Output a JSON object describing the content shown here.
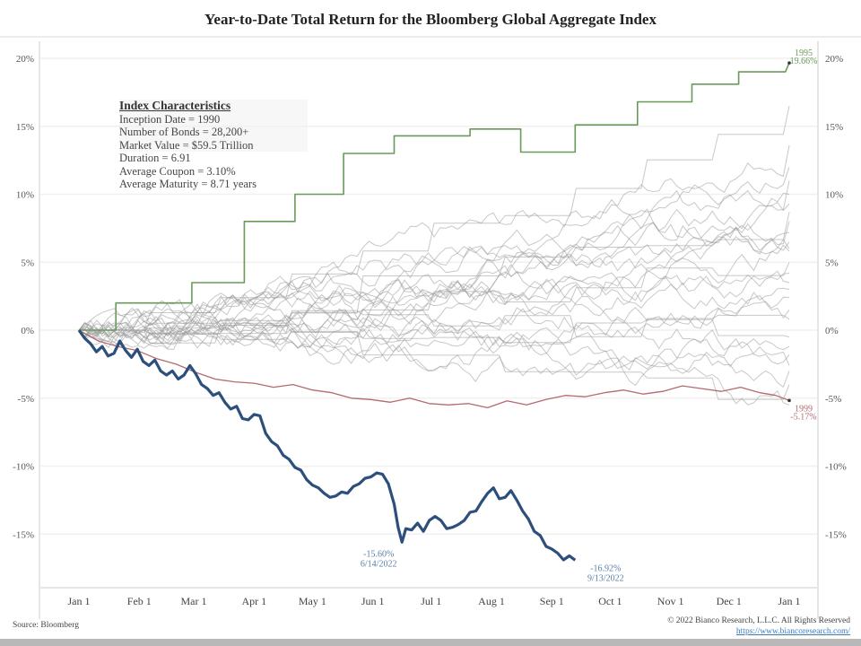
{
  "chart_data": {
    "type": "line",
    "title": "Year-to-Date Total Return for the Bloomberg Global Aggregate Index",
    "xlabel": "",
    "ylabel": "",
    "ylim": [
      -19,
      21
    ],
    "y_ticks": [
      "20%",
      "15%",
      "10%",
      "5%",
      "0%",
      "-5%",
      "-10%",
      "-15%"
    ],
    "y_tick_values": [
      20,
      15,
      10,
      5,
      0,
      -5,
      -10,
      -15
    ],
    "x_ticks": [
      "Jan 1",
      "Feb 1",
      "Mar 1",
      "Apr 1",
      "May 1",
      "Jun 1",
      "Jul 1",
      "Aug 1",
      "Sep 1",
      "Oct 1",
      "Nov 1",
      "Dec 1",
      "Jan 1"
    ],
    "x_tick_days": [
      0,
      31,
      59,
      90,
      120,
      151,
      181,
      212,
      243,
      273,
      304,
      334,
      365
    ],
    "grid": true,
    "series": [
      {
        "name": "2022",
        "color": "#2c4f7c",
        "points": [
          [
            0,
            0
          ],
          [
            3,
            -0.6
          ],
          [
            6,
            -1.0
          ],
          [
            9,
            -1.6
          ],
          [
            12,
            -1.2
          ],
          [
            15,
            -1.9
          ],
          [
            18,
            -1.7
          ],
          [
            21,
            -0.8
          ],
          [
            24,
            -1.5
          ],
          [
            27,
            -2.0
          ],
          [
            30,
            -1.4
          ],
          [
            33,
            -2.3
          ],
          [
            36,
            -2.6
          ],
          [
            39,
            -2.2
          ],
          [
            42,
            -3.0
          ],
          [
            45,
            -3.3
          ],
          [
            48,
            -3.0
          ],
          [
            51,
            -3.6
          ],
          [
            54,
            -3.3
          ],
          [
            57,
            -2.6
          ],
          [
            60,
            -3.2
          ],
          [
            63,
            -4.0
          ],
          [
            66,
            -4.3
          ],
          [
            69,
            -4.8
          ],
          [
            72,
            -4.6
          ],
          [
            75,
            -5.3
          ],
          [
            78,
            -5.8
          ],
          [
            81,
            -5.6
          ],
          [
            84,
            -6.5
          ],
          [
            87,
            -6.6
          ],
          [
            90,
            -6.2
          ],
          [
            93,
            -6.3
          ],
          [
            96,
            -7.6
          ],
          [
            99,
            -8.2
          ],
          [
            102,
            -8.5
          ],
          [
            105,
            -9.2
          ],
          [
            108,
            -9.5
          ],
          [
            111,
            -10.1
          ],
          [
            114,
            -10.3
          ],
          [
            117,
            -11.0
          ],
          [
            120,
            -11.4
          ],
          [
            123,
            -11.6
          ],
          [
            126,
            -12.0
          ],
          [
            129,
            -12.3
          ],
          [
            132,
            -12.2
          ],
          [
            135,
            -11.9
          ],
          [
            138,
            -12.0
          ],
          [
            141,
            -11.5
          ],
          [
            144,
            -11.3
          ],
          [
            147,
            -10.9
          ],
          [
            150,
            -10.8
          ],
          [
            153,
            -10.5
          ],
          [
            156,
            -10.6
          ],
          [
            159,
            -11.3
          ],
          [
            162,
            -12.8
          ],
          [
            164,
            -14.5
          ],
          [
            166,
            -15.6
          ],
          [
            168,
            -14.6
          ],
          [
            171,
            -14.7
          ],
          [
            174,
            -14.2
          ],
          [
            177,
            -14.8
          ],
          [
            180,
            -14.0
          ],
          [
            183,
            -13.7
          ],
          [
            186,
            -14.0
          ],
          [
            189,
            -14.6
          ],
          [
            192,
            -14.5
          ],
          [
            195,
            -14.3
          ],
          [
            198,
            -14.0
          ],
          [
            201,
            -13.4
          ],
          [
            204,
            -13.3
          ],
          [
            207,
            -12.6
          ],
          [
            210,
            -12.0
          ],
          [
            213,
            -11.6
          ],
          [
            216,
            -12.4
          ],
          [
            219,
            -12.3
          ],
          [
            222,
            -11.8
          ],
          [
            225,
            -12.5
          ],
          [
            228,
            -13.3
          ],
          [
            231,
            -13.9
          ],
          [
            234,
            -14.8
          ],
          [
            237,
            -15.1
          ],
          [
            240,
            -15.9
          ],
          [
            243,
            -16.1
          ],
          [
            246,
            -16.4
          ],
          [
            249,
            -16.9
          ],
          [
            252,
            -16.6
          ],
          [
            255,
            -16.92
          ]
        ],
        "annotations": [
          {
            "label": "-15.60%",
            "sublabel": "6/14/2022",
            "day": 166,
            "value": -15.6
          },
          {
            "label": "-16.92%",
            "sublabel": "9/13/2022",
            "day": 255,
            "value": -16.92
          }
        ]
      },
      {
        "name": "1995",
        "color": "#6a9a5a",
        "label": "1995",
        "end_label": "19.66%",
        "points": [
          [
            0,
            0
          ],
          [
            19,
            0
          ],
          [
            19,
            2.0
          ],
          [
            58,
            2.0
          ],
          [
            58,
            3.5
          ],
          [
            85,
            3.5
          ],
          [
            85,
            8.0
          ],
          [
            111,
            8.0
          ],
          [
            111,
            10.0
          ],
          [
            136,
            10.0
          ],
          [
            136,
            13.0
          ],
          [
            162,
            13.0
          ],
          [
            162,
            14.3
          ],
          [
            201,
            14.3
          ],
          [
            201,
            14.8
          ],
          [
            227,
            14.8
          ],
          [
            227,
            13.1
          ],
          [
            255,
            13.1
          ],
          [
            255,
            15.1
          ],
          [
            287,
            15.1
          ],
          [
            287,
            16.8
          ],
          [
            315,
            16.8
          ],
          [
            315,
            18.1
          ],
          [
            339,
            18.1
          ],
          [
            339,
            19.0
          ],
          [
            363,
            19.0
          ],
          [
            365,
            19.66
          ]
        ]
      },
      {
        "name": "1999",
        "color": "#b46a6e",
        "label": "1999",
        "end_label": "-5.17%",
        "points": [
          [
            0,
            0
          ],
          [
            10,
            -0.8
          ],
          [
            20,
            -1.2
          ],
          [
            30,
            -1.5
          ],
          [
            40,
            -2.1
          ],
          [
            50,
            -2.5
          ],
          [
            60,
            -3.1
          ],
          [
            70,
            -3.6
          ],
          [
            80,
            -3.8
          ],
          [
            90,
            -3.9
          ],
          [
            100,
            -4.2
          ],
          [
            110,
            -4.0
          ],
          [
            120,
            -4.4
          ],
          [
            130,
            -4.6
          ],
          [
            140,
            -5.0
          ],
          [
            150,
            -5.1
          ],
          [
            160,
            -5.3
          ],
          [
            170,
            -5.0
          ],
          [
            180,
            -5.4
          ],
          [
            190,
            -5.5
          ],
          [
            200,
            -5.4
          ],
          [
            210,
            -5.7
          ],
          [
            220,
            -5.2
          ],
          [
            230,
            -5.5
          ],
          [
            240,
            -5.1
          ],
          [
            250,
            -4.8
          ],
          [
            260,
            -4.9
          ],
          [
            270,
            -4.6
          ],
          [
            280,
            -4.4
          ],
          [
            290,
            -4.7
          ],
          [
            300,
            -4.5
          ],
          [
            310,
            -4.1
          ],
          [
            320,
            -4.3
          ],
          [
            330,
            -4.5
          ],
          [
            340,
            -4.2
          ],
          [
            350,
            -4.6
          ],
          [
            358,
            -4.8
          ],
          [
            365,
            -5.17
          ]
        ]
      }
    ],
    "other_years_note": "Other Global Aggregate Index years since 1990 drawn as thin gray lines",
    "other_years_end_values": [
      16.5,
      13.6,
      11.0,
      10.0,
      9.3,
      8.7,
      8.0,
      7.2,
      6.5,
      5.8,
      5.0,
      4.2,
      3.5,
      2.4,
      1.5,
      0.8,
      -1.2,
      -1.8,
      -2.6,
      -3.0,
      -4.0,
      -5.5,
      12.0,
      6.0,
      3.0,
      -0.5
    ]
  },
  "index_characteristics": {
    "header": "Index Characteristics",
    "rows": [
      "Inception Date = 1990",
      "Number of Bonds = 28,200+",
      "Market Value = $59.5 Trillion",
      "Duration = 6.91",
      "Average Coupon = 3.10%",
      "Average Maturity = 8.71 years"
    ]
  },
  "footer": {
    "source": "Source: Bloomberg",
    "copyright": "© 2022 Bianco Research, L.L.C. All Rights Reserved",
    "link": "https://www.biancoresearch.com/"
  }
}
